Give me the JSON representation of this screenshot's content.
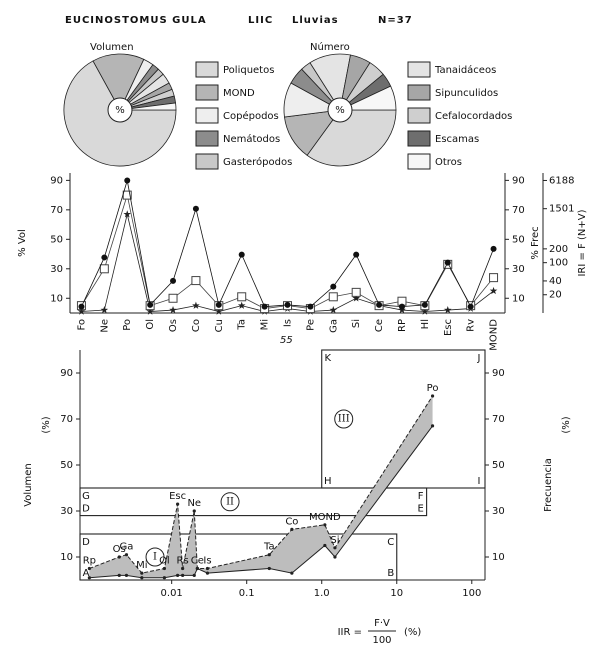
{
  "header": {
    "species": "EUCINOSTOMUS GULA",
    "site": "LIIC",
    "season": "Lluvias",
    "n": "N=37"
  },
  "chart_data": [
    {
      "type": "pie",
      "center_label": "%",
      "categories": [
        "Poliquetos",
        "MOND",
        "Copépodos",
        "Nemátodos",
        "Gasterópodos",
        "Tanaidáceos",
        "Sipunculidos",
        "Cefalocordados",
        "Escamas",
        "Otros"
      ],
      "colors": [
        "#d9d9d9",
        "#b5b5b5",
        "#eeeeee",
        "#8c8c8c",
        "#c8c8c8",
        "#e4e4e4",
        "#a6a6a6",
        "#cfcfcf",
        "#6e6e6e",
        "#f7f7f7"
      ],
      "series": [
        {
          "name": "Volumen",
          "values": [
            67,
            15,
            3,
            2,
            2,
            3,
            2,
            2,
            2,
            2
          ]
        },
        {
          "name": "Número",
          "values": [
            35,
            13,
            10,
            5,
            3,
            12,
            6,
            5,
            4,
            7
          ]
        }
      ]
    },
    {
      "type": "line",
      "categories": [
        "Fo",
        "Ne",
        "Po",
        "Ol",
        "Os",
        "Co",
        "Cu",
        "Ta",
        "Mi",
        "Is",
        "Pe",
        "Ga",
        "Si",
        "Ce",
        "RP",
        "Hl",
        "Esc",
        "Rv",
        "MOND"
      ],
      "series": [
        {
          "name": "% Vol",
          "marker": "star",
          "color": "#222222",
          "values": [
            1,
            2,
            67,
            1,
            2,
            5,
            1,
            5,
            1,
            3,
            1,
            2,
            10,
            5,
            2,
            1,
            2,
            3,
            15
          ]
        },
        {
          "name": "% Frec",
          "marker": "square",
          "axis": "y2",
          "color": "#444444",
          "values": [
            5,
            30,
            80,
            5,
            10,
            22,
            5,
            11,
            3,
            5,
            3,
            11,
            14,
            5,
            8,
            5,
            33,
            5,
            24
          ]
        },
        {
          "name": "IRI = F (N+V)",
          "marker": "dot",
          "axis": "y3",
          "color": "#111111",
          "values": [
            11,
            130,
            6188,
            12,
            40,
            1501,
            12,
            150,
            11,
            12,
            11,
            30,
            150,
            12,
            11,
            12,
            100,
            11,
            200
          ]
        }
      ],
      "ylim": [
        0,
        95
      ],
      "yticks": [
        10,
        30,
        50,
        70,
        90
      ],
      "y2lim": [
        0,
        95
      ],
      "y2ticks": [
        10,
        30,
        50,
        70,
        90
      ],
      "y3lim": [
        8,
        9000
      ],
      "y3ticks": [
        20,
        40,
        100,
        200,
        1501,
        6188
      ],
      "y3log": true,
      "annotation": "55"
    },
    {
      "type": "band",
      "categories": [
        "Rp",
        "Os",
        "Ga",
        "Mi",
        "Ol",
        "Esc",
        "Rs",
        "Ne",
        "Ce",
        "Is",
        "Ta",
        "Co",
        "MOND",
        "Si",
        "Po"
      ],
      "x": [
        0.0008,
        0.002,
        0.0025,
        0.004,
        0.008,
        0.012,
        0.014,
        0.02,
        0.022,
        0.03,
        0.2,
        0.4,
        1.1,
        1.5,
        30
      ],
      "series": [
        {
          "name": "Volumen",
          "color": "#222222",
          "values": [
            1,
            2,
            2,
            1,
            1,
            2,
            2,
            2,
            5,
            3,
            5,
            3,
            15,
            10,
            67
          ]
        },
        {
          "name": "Frecuencia",
          "axis": "y2",
          "dashed": true,
          "color": "#222222",
          "values": [
            5,
            10,
            11,
            3,
            5,
            33,
            5,
            30,
            5,
            5,
            11,
            22,
            24,
            14,
            80
          ]
        }
      ],
      "y_unit": "(%)",
      "xlabel": "IIR =",
      "xlabel_numerator": "F·V",
      "xlabel_denominator": "100",
      "xlabel_unit": "(%)",
      "xlog": true,
      "xlim": [
        0.0006,
        150
      ],
      "xticks": [
        0.01,
        {
          "value": 0.1,
          "label": "0.1"
        },
        {
          "value": 1,
          "label": "1.0"
        },
        10,
        100
      ],
      "ylim": [
        0,
        100
      ],
      "yticks": [
        10,
        30,
        50,
        70,
        90
      ],
      "y2lim": [
        0,
        100
      ],
      "y2ticks": [
        10,
        30,
        50,
        70,
        90
      ],
      "fill": "#bdbdbd",
      "regions": [
        {
          "label": "I",
          "corners": [
            "A",
            "B",
            "C",
            "D"
          ],
          "xlim": [
            0.0006,
            10
          ],
          "ylim": [
            0,
            20
          ]
        },
        {
          "label": "II",
          "corners": [
            "D",
            "E",
            "F",
            "G"
          ],
          "xlim": [
            0.0006,
            25
          ],
          "ylim": [
            28,
            40
          ]
        },
        {
          "label": "III",
          "corners": [
            "H",
            "I",
            "J",
            "K"
          ],
          "xlim": [
            1,
            150
          ],
          "ylim": [
            40,
            100
          ]
        }
      ]
    }
  ]
}
